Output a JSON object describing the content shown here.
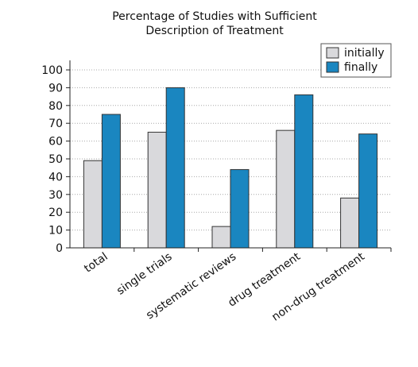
{
  "chart_data": {
    "type": "bar",
    "title_lines": [
      "Percentage of Studies with Sufficient",
      "Description of Treatment"
    ],
    "categories": [
      "total",
      "single trials",
      "systematic reviews",
      "drug treatment",
      "non-drug treatment"
    ],
    "series": [
      {
        "name": "initially",
        "values": [
          49,
          65,
          12,
          66,
          28
        ],
        "color": "#d9d9dc"
      },
      {
        "name": "finally",
        "values": [
          75,
          90,
          44,
          86,
          64
        ],
        "color": "#1a86c0"
      }
    ],
    "yticks": [
      0,
      10,
      20,
      30,
      40,
      50,
      60,
      70,
      80,
      90,
      100
    ],
    "ylim": [
      0,
      105
    ],
    "grid": true,
    "legend_position": "top-right"
  }
}
